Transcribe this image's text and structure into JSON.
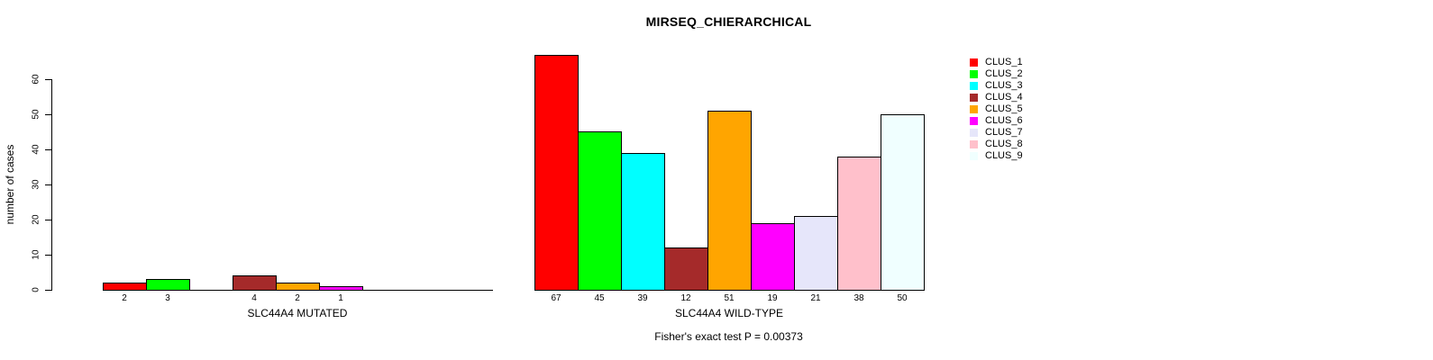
{
  "chart_data": {
    "type": "bar",
    "title": "MIRSEQ_CHIERARCHICAL",
    "xlabel": "",
    "ylabel": "number of cases",
    "ylim": [
      0,
      67
    ],
    "y_ticks": [
      0,
      10,
      20,
      30,
      40,
      50,
      60
    ],
    "grid": false,
    "legend_position": "top-right",
    "categories": [
      "CLUS_1",
      "CLUS_2",
      "CLUS_3",
      "CLUS_4",
      "CLUS_5",
      "CLUS_6",
      "CLUS_7",
      "CLUS_8",
      "CLUS_9"
    ],
    "series_colors": [
      "#FF0000",
      "#00FF00",
      "#00FFFF",
      "#A52A2A",
      "#FFA500",
      "#FF00FF",
      "#E6E6FA",
      "#FFC0CB",
      "#F0FFFF"
    ],
    "groups": [
      {
        "label": "SLC44A4 MUTATED",
        "values": [
          2,
          3,
          0,
          4,
          2,
          1,
          0,
          0,
          0
        ]
      },
      {
        "label": "SLC44A4 WILD-TYPE",
        "values": [
          67,
          45,
          39,
          12,
          51,
          19,
          21,
          38,
          50
        ]
      }
    ],
    "annotation": "Fisher's exact test P = 0.00373"
  }
}
